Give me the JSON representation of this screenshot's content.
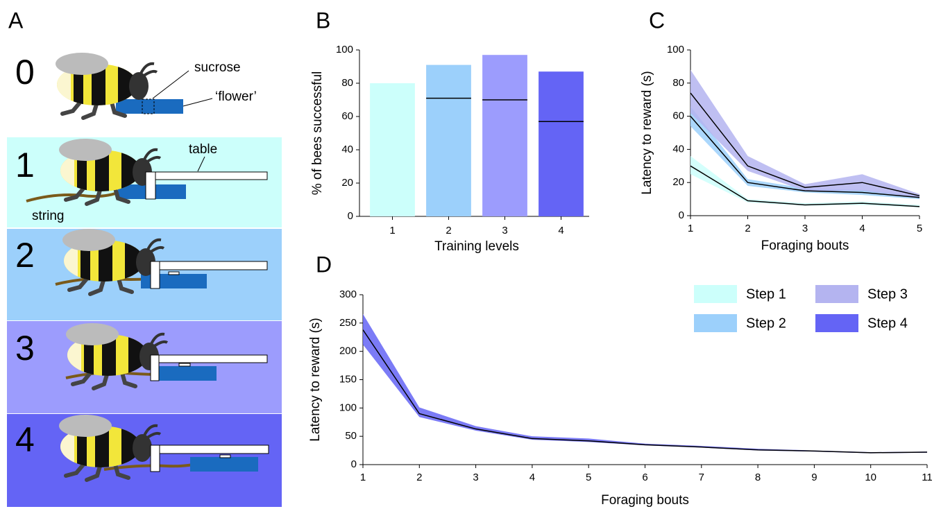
{
  "panel_a": {
    "label": "A",
    "steps": [
      "0",
      "1",
      "2",
      "3",
      "4"
    ],
    "annotations": {
      "sucrose": "sucrose",
      "flower": "‘flower’",
      "table": "table",
      "string": "string"
    }
  },
  "chart_data": [
    {
      "type": "bar",
      "panel": "B",
      "categories": [
        "1",
        "2",
        "3",
        "4"
      ],
      "values": [
        80,
        91,
        97,
        87
      ],
      "lines": [
        null,
        71,
        70,
        57
      ],
      "colors": [
        "#ccfffb",
        "#9cd0fb",
        "#9c9cfd",
        "#6464f5"
      ],
      "ylim": [
        0,
        100
      ],
      "yticks": [
        0,
        20,
        40,
        60,
        80,
        100
      ],
      "xlabel": "Training levels",
      "ylabel": "% of bees successful"
    },
    {
      "type": "line",
      "panel": "C",
      "x": [
        1,
        2,
        3,
        4,
        5
      ],
      "series": [
        {
          "name": "Step 1",
          "color": "#ccfffb",
          "values": [
            30,
            9,
            6.5,
            7.5,
            5.5
          ],
          "lower": [
            25,
            8,
            6,
            6.5,
            5
          ],
          "upper": [
            36,
            10,
            7.5,
            8.5,
            6.5
          ]
        },
        {
          "name": "Step 2",
          "color": "#9cd0fb",
          "values": [
            60,
            20,
            15,
            14,
            11
          ],
          "lower": [
            54,
            18,
            14,
            12.5,
            10
          ],
          "upper": [
            66,
            22,
            16.5,
            15.5,
            12
          ]
        },
        {
          "name": "Step 3",
          "color": "#b4b4f0",
          "values": [
            74,
            30,
            17,
            20,
            12
          ],
          "lower": [
            62,
            27,
            15,
            15,
            11
          ],
          "upper": [
            88,
            36,
            19,
            25,
            13
          ]
        }
      ],
      "line_color": "#000000",
      "xlim": [
        1,
        5
      ],
      "xticks": [
        1,
        2,
        3,
        4,
        5
      ],
      "ylim": [
        0,
        100
      ],
      "yticks": [
        0,
        20,
        40,
        60,
        80,
        100
      ],
      "xlabel": "Foraging bouts",
      "ylabel": "Latency to reward (s)"
    },
    {
      "type": "line",
      "panel": "D",
      "x": [
        1,
        2,
        3,
        4,
        5,
        6,
        7,
        8,
        9,
        10,
        11
      ],
      "series": [
        {
          "name": "Step 4",
          "color": "#6464f5",
          "values": [
            238,
            90,
            63,
            46,
            42,
            35,
            31,
            26,
            24,
            21,
            22
          ],
          "lower": [
            212,
            84,
            60,
            44,
            40,
            34,
            30,
            25,
            23,
            20,
            21
          ],
          "upper": [
            266,
            101,
            68,
            50,
            46,
            37,
            33,
            28,
            25,
            22,
            23
          ]
        }
      ],
      "line_color": "#000000",
      "xlim": [
        1,
        11
      ],
      "xticks": [
        1,
        2,
        3,
        4,
        5,
        6,
        7,
        8,
        9,
        10,
        11
      ],
      "ylim": [
        0,
        300
      ],
      "yticks": [
        0,
        50,
        100,
        150,
        200,
        250,
        300
      ],
      "xlabel": "Foraging bouts",
      "ylabel": "Latency to reward (s)"
    }
  ]
}
